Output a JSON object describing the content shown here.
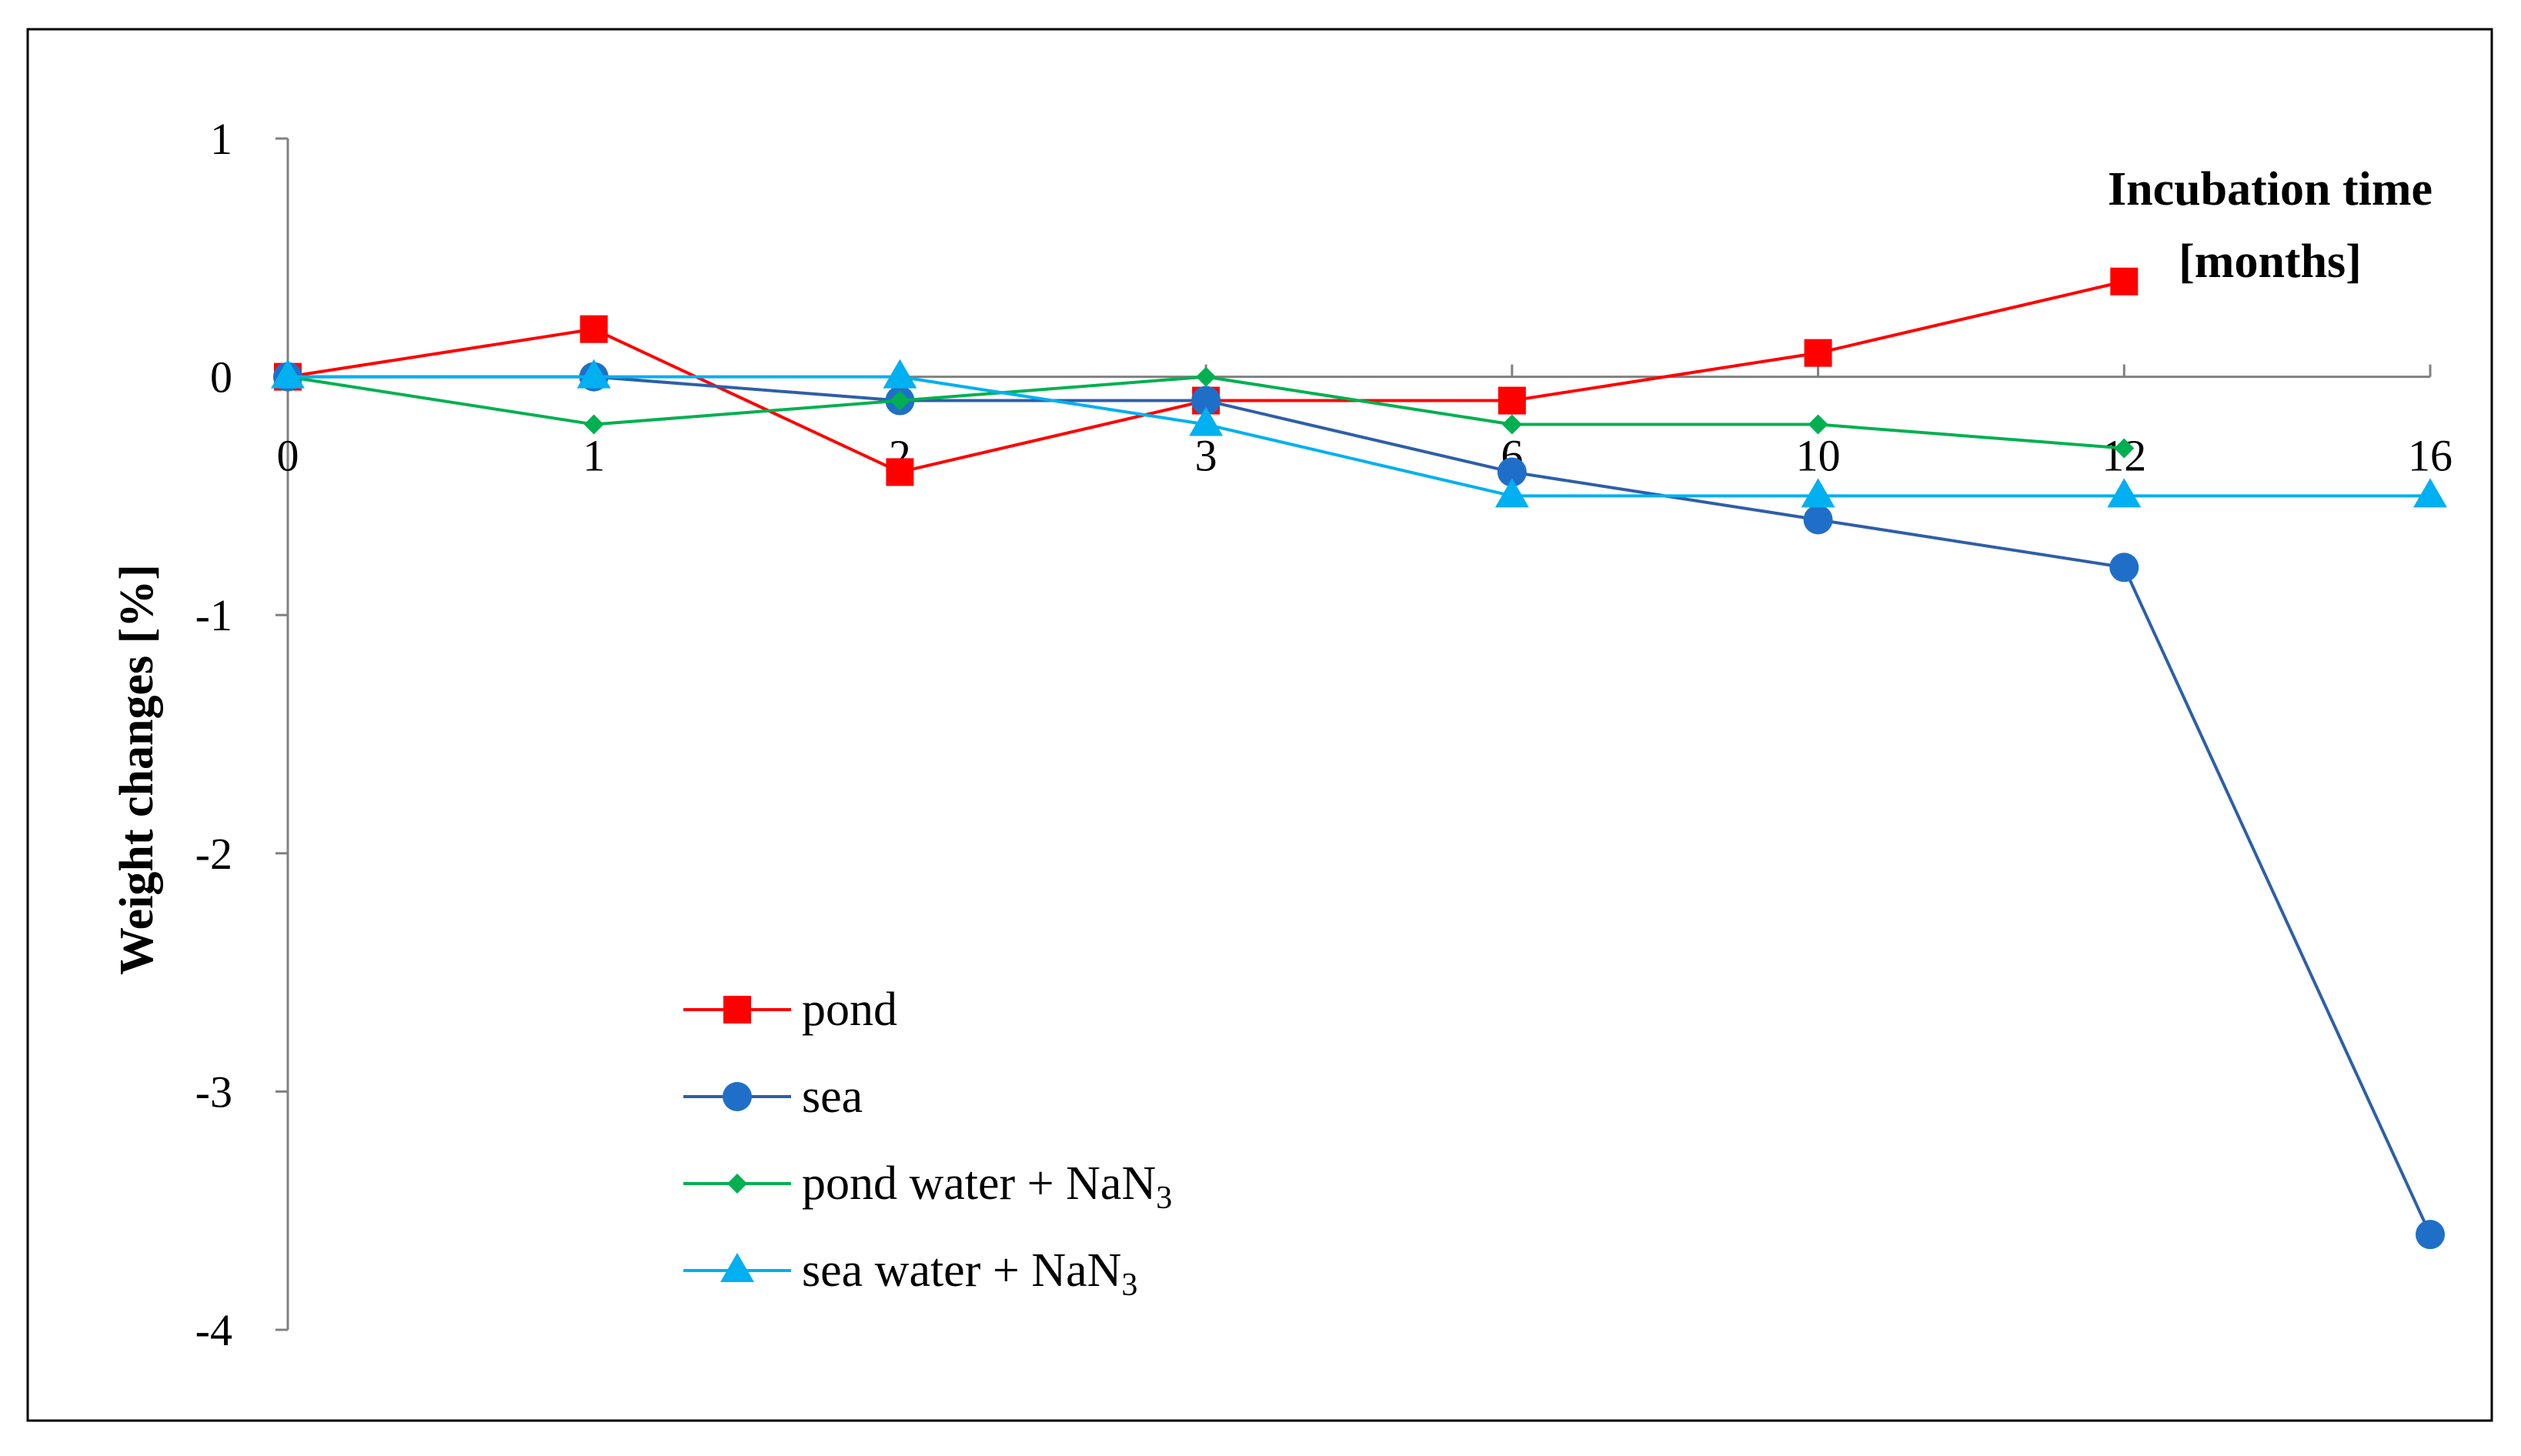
{
  "colors": {
    "pond": "#ff0000",
    "sea": "#2e5fa8",
    "sea_marker": "#1f6fc9",
    "pond_nan3": "#00b050",
    "sea_nan3": "#00b0f0",
    "axis": "#808080",
    "frame": "#000000",
    "text": "#000000"
  },
  "chart_data": {
    "type": "line",
    "title": "",
    "xlabel": "Incubation time",
    "xlabel_unit": "[months]",
    "ylabel": "Weight changes [%]",
    "categories": [
      "0",
      "1",
      "2",
      "3",
      "6",
      "10",
      "12",
      "16"
    ],
    "y_ticks": [
      "1",
      "0",
      "-1",
      "-2",
      "-3",
      "-4"
    ],
    "ylim": [
      -4,
      1
    ],
    "grid": false,
    "legend_position": "bottom-left",
    "series": [
      {
        "name": "pond",
        "legend_label": "pond",
        "marker": "square",
        "color_key": "pond",
        "values": [
          0,
          0.2,
          -0.4,
          -0.1,
          -0.1,
          0.1,
          0.4,
          null
        ]
      },
      {
        "name": "sea",
        "legend_label": "sea",
        "marker": "circle",
        "color_key": "sea",
        "values": [
          0,
          0,
          -0.1,
          -0.1,
          -0.4,
          -0.6,
          -0.8,
          -3.6
        ]
      },
      {
        "name": "pond water + NaN3",
        "legend_label": "pond water + NaN",
        "legend_sub": "3",
        "marker": "diamond",
        "color_key": "pond_nan3",
        "values": [
          0,
          -0.2,
          -0.1,
          0,
          -0.2,
          -0.2,
          -0.3,
          null
        ]
      },
      {
        "name": "sea water + NaN3",
        "legend_label": "sea water + NaN",
        "legend_sub": "3",
        "marker": "triangle",
        "color_key": "sea_nan3",
        "values": [
          0,
          0,
          0,
          -0.2,
          -0.5,
          -0.5,
          -0.5,
          -0.5
        ]
      }
    ]
  }
}
